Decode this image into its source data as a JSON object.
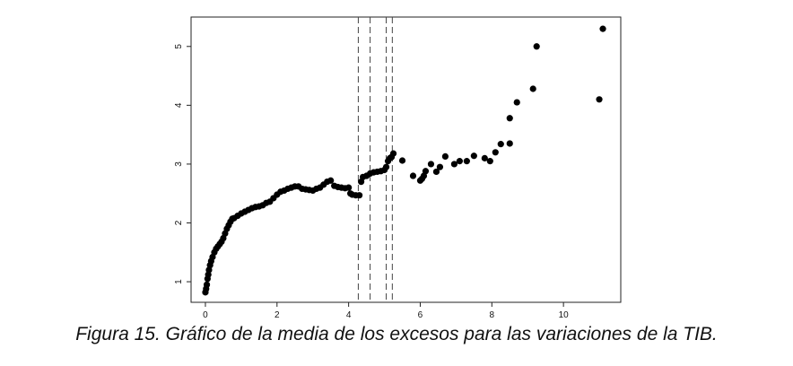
{
  "caption": "Figura 15. Gráfico de la media de los excesos para las variaciones de la TIB.",
  "chart_data": {
    "type": "scatter",
    "title": "",
    "xlabel": "",
    "ylabel": "",
    "xlim": [
      -0.4,
      11.6
    ],
    "ylim": [
      0.65,
      5.5
    ],
    "x_ticks": [
      0,
      2,
      4,
      6,
      8,
      10
    ],
    "y_ticks": [
      1,
      2,
      3,
      4,
      5
    ],
    "x_tick_labels": [
      "0",
      "2",
      "4",
      "6",
      "8",
      "10"
    ],
    "y_tick_labels": [
      "1",
      "2",
      "3",
      "4",
      "5"
    ],
    "grid": false,
    "vertical_reference_lines": [
      4.27,
      4.6,
      5.05,
      5.22
    ],
    "point_color": "#000000",
    "x": [
      0.0,
      0.02,
      0.04,
      0.06,
      0.08,
      0.1,
      0.13,
      0.16,
      0.2,
      0.25,
      0.3,
      0.35,
      0.4,
      0.45,
      0.5,
      0.55,
      0.6,
      0.65,
      0.7,
      0.75,
      0.8,
      0.9,
      1.0,
      1.1,
      1.2,
      1.3,
      1.4,
      1.5,
      1.6,
      1.7,
      1.8,
      1.9,
      2.0,
      2.1,
      2.2,
      2.3,
      2.4,
      2.5,
      2.6,
      2.7,
      2.8,
      2.9,
      3.0,
      3.1,
      3.2,
      3.3,
      3.4,
      3.5,
      3.6,
      3.7,
      3.8,
      3.9,
      4.0,
      4.05,
      4.1,
      4.2,
      4.3,
      4.35,
      4.4,
      4.5,
      4.6,
      4.7,
      4.8,
      4.9,
      5.0,
      5.05,
      5.1,
      5.15,
      5.2,
      5.25,
      5.5,
      5.8,
      6.0,
      6.05,
      6.1,
      6.15,
      6.3,
      6.45,
      6.55,
      6.7,
      6.95,
      7.1,
      7.3,
      7.5,
      7.8,
      7.95,
      8.1,
      8.25,
      8.5,
      8.5,
      8.7,
      9.15,
      9.25,
      11.0,
      11.1
    ],
    "y": [
      0.82,
      0.88,
      0.95,
      1.05,
      1.12,
      1.2,
      1.28,
      1.35,
      1.42,
      1.5,
      1.56,
      1.6,
      1.64,
      1.68,
      1.74,
      1.82,
      1.9,
      1.96,
      2.02,
      2.07,
      2.08,
      2.12,
      2.16,
      2.19,
      2.22,
      2.25,
      2.27,
      2.28,
      2.3,
      2.34,
      2.36,
      2.42,
      2.48,
      2.53,
      2.55,
      2.58,
      2.6,
      2.62,
      2.62,
      2.58,
      2.57,
      2.56,
      2.55,
      2.58,
      2.6,
      2.65,
      2.7,
      2.72,
      2.63,
      2.61,
      2.6,
      2.59,
      2.6,
      2.5,
      2.48,
      2.47,
      2.47,
      2.7,
      2.78,
      2.8,
      2.84,
      2.86,
      2.87,
      2.88,
      2.9,
      2.95,
      3.05,
      3.1,
      3.12,
      3.18,
      3.06,
      2.8,
      2.72,
      2.75,
      2.8,
      2.88,
      3.0,
      2.87,
      2.95,
      3.13,
      3.0,
      3.05,
      3.05,
      3.14,
      3.1,
      3.05,
      3.2,
      3.34,
      3.35,
      3.78,
      4.05,
      4.28,
      5.0,
      4.1,
      5.3
    ]
  }
}
